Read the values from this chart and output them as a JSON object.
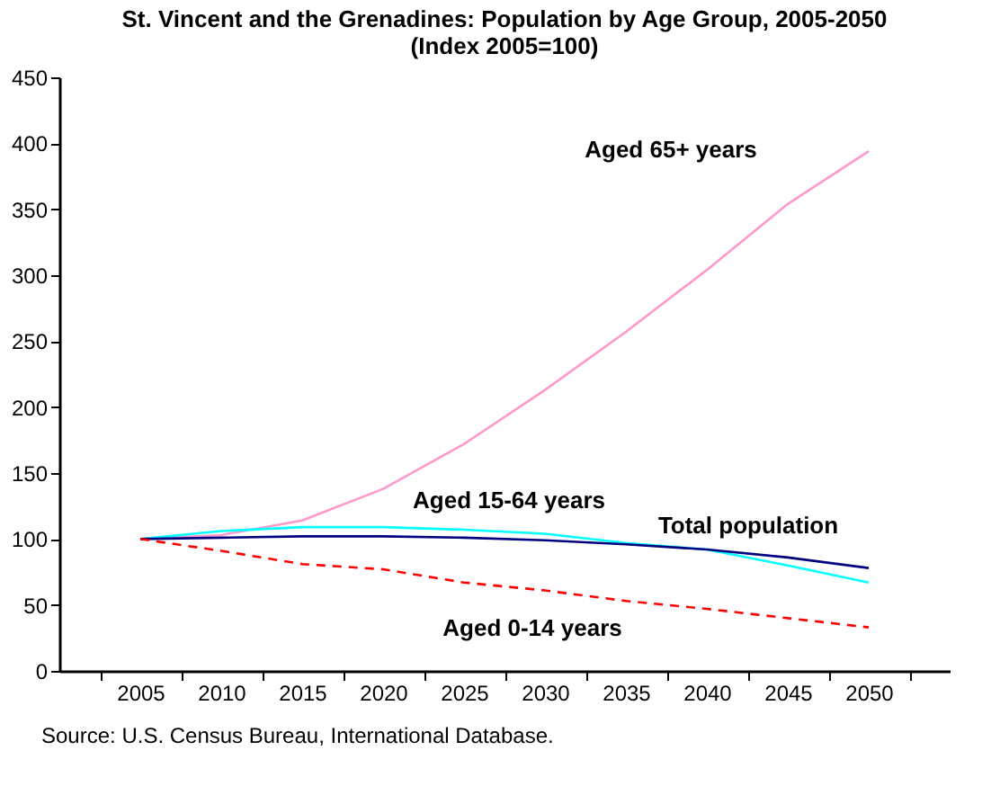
{
  "chart_data": {
    "type": "line",
    "title": [
      "St. Vincent and the Grenadines: Population by Age Group, 2005-2050",
      "(Index 2005=100)"
    ],
    "categories": [
      "2005",
      "2010",
      "2015",
      "2020",
      "2025",
      "2030",
      "2035",
      "2040",
      "2045",
      "2050"
    ],
    "ylim": [
      0,
      450
    ],
    "yticks": [
      0,
      50,
      100,
      150,
      200,
      250,
      300,
      350,
      400,
      450
    ],
    "marker": "none",
    "series": [
      {
        "name": "Aged 65+ years",
        "color": "#ff99cc",
        "values": [
          100,
          103,
          114,
          138,
          172,
          213,
          257,
          304,
          354,
          394
        ],
        "line_style": "solid"
      },
      {
        "name": "Aged 15-64 years",
        "color": "#00ffff",
        "values": [
          100,
          106,
          109,
          109,
          107,
          104,
          97,
          92,
          80,
          67
        ],
        "line_style": "solid"
      },
      {
        "name": "Total population",
        "color": "#000080",
        "values": [
          100,
          101,
          102,
          102,
          101,
          99,
          96,
          92,
          86,
          78
        ],
        "line_style": "solid"
      },
      {
        "name": "Aged 0-14 years",
        "color": "#ff0000",
        "values": [
          100,
          91,
          81,
          77,
          67,
          61,
          53,
          47,
          40,
          33
        ],
        "line_style": "dashed"
      }
    ],
    "annotations": [
      "Source: U.S. Census Bureau, International Database."
    ]
  }
}
